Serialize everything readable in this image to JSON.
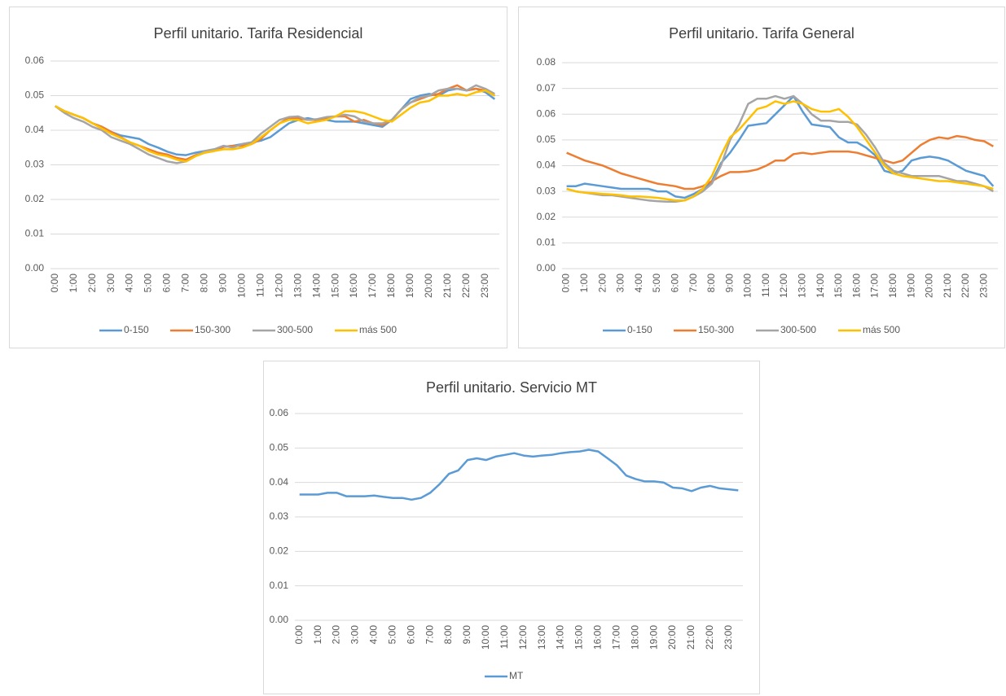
{
  "chart_data": [
    {
      "type": "line",
      "title": "Perfil unitario. Tarifa Residencial",
      "categories": [
        "0:00",
        null,
        "1:00",
        null,
        "2:00",
        null,
        "3:00",
        null,
        "4:00",
        null,
        "5:00",
        null,
        "6:00",
        null,
        "7:00",
        null,
        "8:00",
        null,
        "9:00",
        null,
        "10:00",
        null,
        "11:00",
        null,
        "12:00",
        null,
        "13:00",
        null,
        "14:00",
        null,
        "15:00",
        null,
        "16:00",
        null,
        "17:00",
        null,
        "18:00",
        null,
        "19:00",
        null,
        "20:00",
        null,
        "21:00",
        null,
        "22:00",
        null,
        "23:00",
        null
      ],
      "ylim": [
        0,
        0.06
      ],
      "yticks": [
        {
          "value": 0,
          "label": "0.00"
        },
        0.01,
        0.02,
        0.03,
        0.04,
        0.05,
        0.06
      ],
      "grid": true,
      "legend": "bottom",
      "series": [
        {
          "name": "0-150",
          "color": "#5b9bd5",
          "values": [
            0.047,
            0.0455,
            0.0445,
            0.0435,
            0.042,
            0.041,
            0.0395,
            0.0385,
            0.038,
            0.0375,
            0.036,
            0.035,
            0.0338,
            0.033,
            0.0328,
            0.0335,
            0.034,
            0.0345,
            0.0352,
            0.0355,
            0.036,
            0.0365,
            0.037,
            0.038,
            0.04,
            0.042,
            0.043,
            0.0435,
            0.043,
            0.043,
            0.0425,
            0.0425,
            0.0425,
            0.042,
            0.0415,
            0.041,
            0.043,
            0.046,
            0.049,
            0.05,
            0.0505,
            0.05,
            0.0515,
            0.052,
            0.0515,
            0.052,
            0.051,
            0.049
          ]
        },
        {
          "name": "150-300",
          "color": "#ed7d31",
          "values": [
            0.047,
            0.0455,
            0.0445,
            0.0435,
            0.042,
            0.041,
            0.0395,
            0.038,
            0.0365,
            0.0355,
            0.0345,
            0.0335,
            0.033,
            0.032,
            0.0315,
            0.0328,
            0.0335,
            0.034,
            0.0352,
            0.0355,
            0.0355,
            0.036,
            0.0375,
            0.04,
            0.042,
            0.0435,
            0.0435,
            0.043,
            0.043,
            0.0435,
            0.044,
            0.044,
            0.0425,
            0.043,
            0.042,
            0.0415,
            0.043,
            0.046,
            0.048,
            0.049,
            0.05,
            0.0505,
            0.052,
            0.053,
            0.0515,
            0.052,
            0.0515,
            0.05
          ]
        },
        {
          "name": "300-500",
          "color": "#a5a5a5",
          "values": [
            0.047,
            0.045,
            0.0435,
            0.0425,
            0.041,
            0.04,
            0.038,
            0.037,
            0.036,
            0.0345,
            0.033,
            0.032,
            0.031,
            0.0305,
            0.031,
            0.0325,
            0.034,
            0.0345,
            0.0355,
            0.035,
            0.036,
            0.0365,
            0.039,
            0.041,
            0.043,
            0.0438,
            0.044,
            0.043,
            0.0432,
            0.0438,
            0.044,
            0.0445,
            0.044,
            0.0425,
            0.042,
            0.042,
            0.043,
            0.046,
            0.048,
            0.0495,
            0.05,
            0.0515,
            0.052,
            0.052,
            0.0515,
            0.053,
            0.052,
            0.0505
          ]
        },
        {
          "name": "más 500",
          "color": "#ffc000",
          "values": [
            0.047,
            0.0455,
            0.0445,
            0.0435,
            0.042,
            0.0405,
            0.039,
            0.0378,
            0.0365,
            0.0355,
            0.034,
            0.033,
            0.0325,
            0.0315,
            0.031,
            0.0325,
            0.0335,
            0.034,
            0.0345,
            0.0345,
            0.035,
            0.036,
            0.038,
            0.04,
            0.042,
            0.043,
            0.043,
            0.042,
            0.0425,
            0.043,
            0.044,
            0.0455,
            0.0455,
            0.045,
            0.044,
            0.043,
            0.0425,
            0.0445,
            0.0465,
            0.048,
            0.0485,
            0.05,
            0.05,
            0.0505,
            0.05,
            0.051,
            0.0515,
            0.05
          ]
        }
      ]
    },
    {
      "type": "line",
      "title": "Perfil unitario. Tarifa General",
      "categories": [
        "0:00",
        null,
        "1:00",
        null,
        "2:00",
        null,
        "3:00",
        null,
        "4:00",
        null,
        "5:00",
        null,
        "6:00",
        null,
        "7:00",
        null,
        "8:00",
        null,
        "9:00",
        null,
        "10:00",
        null,
        "11:00",
        null,
        "12:00",
        null,
        "13:00",
        null,
        "14:00",
        null,
        "15:00",
        null,
        "16:00",
        null,
        "17:00",
        null,
        "18:00",
        null,
        "19:00",
        null,
        "20:00",
        null,
        "21:00",
        null,
        "22:00",
        null,
        "23:00",
        null
      ],
      "ylim": [
        0,
        0.08
      ],
      "yticks": [
        {
          "value": 0,
          "label": "0.00"
        },
        0.01,
        0.02,
        0.03,
        0.04,
        0.05,
        0.06,
        0.07,
        0.08
      ],
      "grid": true,
      "legend": "bottom",
      "series": [
        {
          "name": "0-150",
          "color": "#5b9bd5",
          "values": [
            0.032,
            0.032,
            0.033,
            0.0325,
            0.032,
            0.0315,
            0.031,
            0.031,
            0.031,
            0.031,
            0.03,
            0.03,
            0.028,
            0.0275,
            0.029,
            0.031,
            0.034,
            0.041,
            0.045,
            0.05,
            0.0555,
            0.056,
            0.0565,
            0.06,
            0.0635,
            0.067,
            0.061,
            0.056,
            0.0555,
            0.055,
            0.051,
            0.049,
            0.049,
            0.047,
            0.044,
            0.038,
            0.037,
            0.038,
            0.042,
            0.043,
            0.0435,
            0.043,
            0.042,
            0.04,
            0.038,
            0.037,
            0.036,
            0.032
          ]
        },
        {
          "name": "150-300",
          "color": "#ed7d31",
          "values": [
            0.045,
            0.0435,
            0.042,
            0.041,
            0.04,
            0.0385,
            0.037,
            0.036,
            0.035,
            0.034,
            0.033,
            0.0325,
            0.032,
            0.031,
            0.031,
            0.032,
            0.034,
            0.036,
            0.0375,
            0.0375,
            0.0378,
            0.0385,
            0.04,
            0.042,
            0.042,
            0.0445,
            0.045,
            0.0445,
            0.045,
            0.0455,
            0.0455,
            0.0455,
            0.045,
            0.044,
            0.043,
            0.042,
            0.041,
            0.042,
            0.045,
            0.048,
            0.05,
            0.051,
            0.0505,
            0.0515,
            0.051,
            0.05,
            0.0495,
            0.0475
          ]
        },
        {
          "name": "300-500",
          "color": "#a5a5a5",
          "values": [
            0.031,
            0.03,
            0.0295,
            0.029,
            0.0285,
            0.0285,
            0.028,
            0.0275,
            0.027,
            0.0265,
            0.0262,
            0.026,
            0.026,
            0.0265,
            0.028,
            0.03,
            0.033,
            0.04,
            0.05,
            0.056,
            0.064,
            0.066,
            0.066,
            0.067,
            0.066,
            0.067,
            0.064,
            0.06,
            0.0575,
            0.0575,
            0.057,
            0.057,
            0.056,
            0.052,
            0.047,
            0.041,
            0.038,
            0.037,
            0.036,
            0.036,
            0.036,
            0.036,
            0.035,
            0.034,
            0.034,
            0.033,
            0.032,
            0.03
          ]
        },
        {
          "name": "más 500",
          "color": "#ffc000",
          "values": [
            0.031,
            0.03,
            0.0295,
            0.0293,
            0.029,
            0.0288,
            0.0285,
            0.028,
            0.028,
            0.0278,
            0.0275,
            0.027,
            0.0265,
            0.0265,
            0.028,
            0.031,
            0.036,
            0.044,
            0.051,
            0.054,
            0.058,
            0.062,
            0.063,
            0.065,
            0.064,
            0.065,
            0.064,
            0.062,
            0.061,
            0.061,
            0.062,
            0.059,
            0.055,
            0.05,
            0.045,
            0.04,
            0.037,
            0.036,
            0.0355,
            0.035,
            0.0345,
            0.034,
            0.034,
            0.0335,
            0.033,
            0.0325,
            0.032,
            0.031
          ]
        }
      ]
    },
    {
      "type": "line",
      "title": "Perfil unitario. Servicio MT",
      "categories": [
        "0:00",
        null,
        "1:00",
        null,
        "2:00",
        null,
        "3:00",
        null,
        "4:00",
        null,
        "5:00",
        null,
        "6:00",
        null,
        "7:00",
        null,
        "8:00",
        null,
        "9:00",
        null,
        "10:00",
        null,
        "11:00",
        null,
        "12:00",
        null,
        "13:00",
        null,
        "14:00",
        null,
        "15:00",
        null,
        "16:00",
        null,
        "17:00",
        null,
        "18:00",
        null,
        "19:00",
        null,
        "20:00",
        null,
        "21:00",
        null,
        "22:00",
        null,
        "23:00",
        null
      ],
      "ylim": [
        0,
        0.06
      ],
      "yticks": [
        {
          "value": 0,
          "label": "0.00"
        },
        0.01,
        0.02,
        0.03,
        0.04,
        0.05,
        0.06
      ],
      "grid": true,
      "legend": "bottom",
      "series": [
        {
          "name": "MT",
          "color": "#5b9bd5",
          "values": [
            0.0365,
            0.0365,
            0.0365,
            0.037,
            0.037,
            0.036,
            0.036,
            0.036,
            0.0362,
            0.0358,
            0.0355,
            0.0355,
            0.035,
            0.0355,
            0.037,
            0.0395,
            0.0425,
            0.0435,
            0.0465,
            0.047,
            0.0465,
            0.0475,
            0.048,
            0.0485,
            0.0478,
            0.0475,
            0.0478,
            0.048,
            0.0485,
            0.0488,
            0.049,
            0.0495,
            0.049,
            0.047,
            0.045,
            0.042,
            0.041,
            0.0403,
            0.0403,
            0.04,
            0.0385,
            0.0383,
            0.0375,
            0.0385,
            0.039,
            0.0383,
            0.038,
            0.0377
          ]
        }
      ]
    }
  ]
}
